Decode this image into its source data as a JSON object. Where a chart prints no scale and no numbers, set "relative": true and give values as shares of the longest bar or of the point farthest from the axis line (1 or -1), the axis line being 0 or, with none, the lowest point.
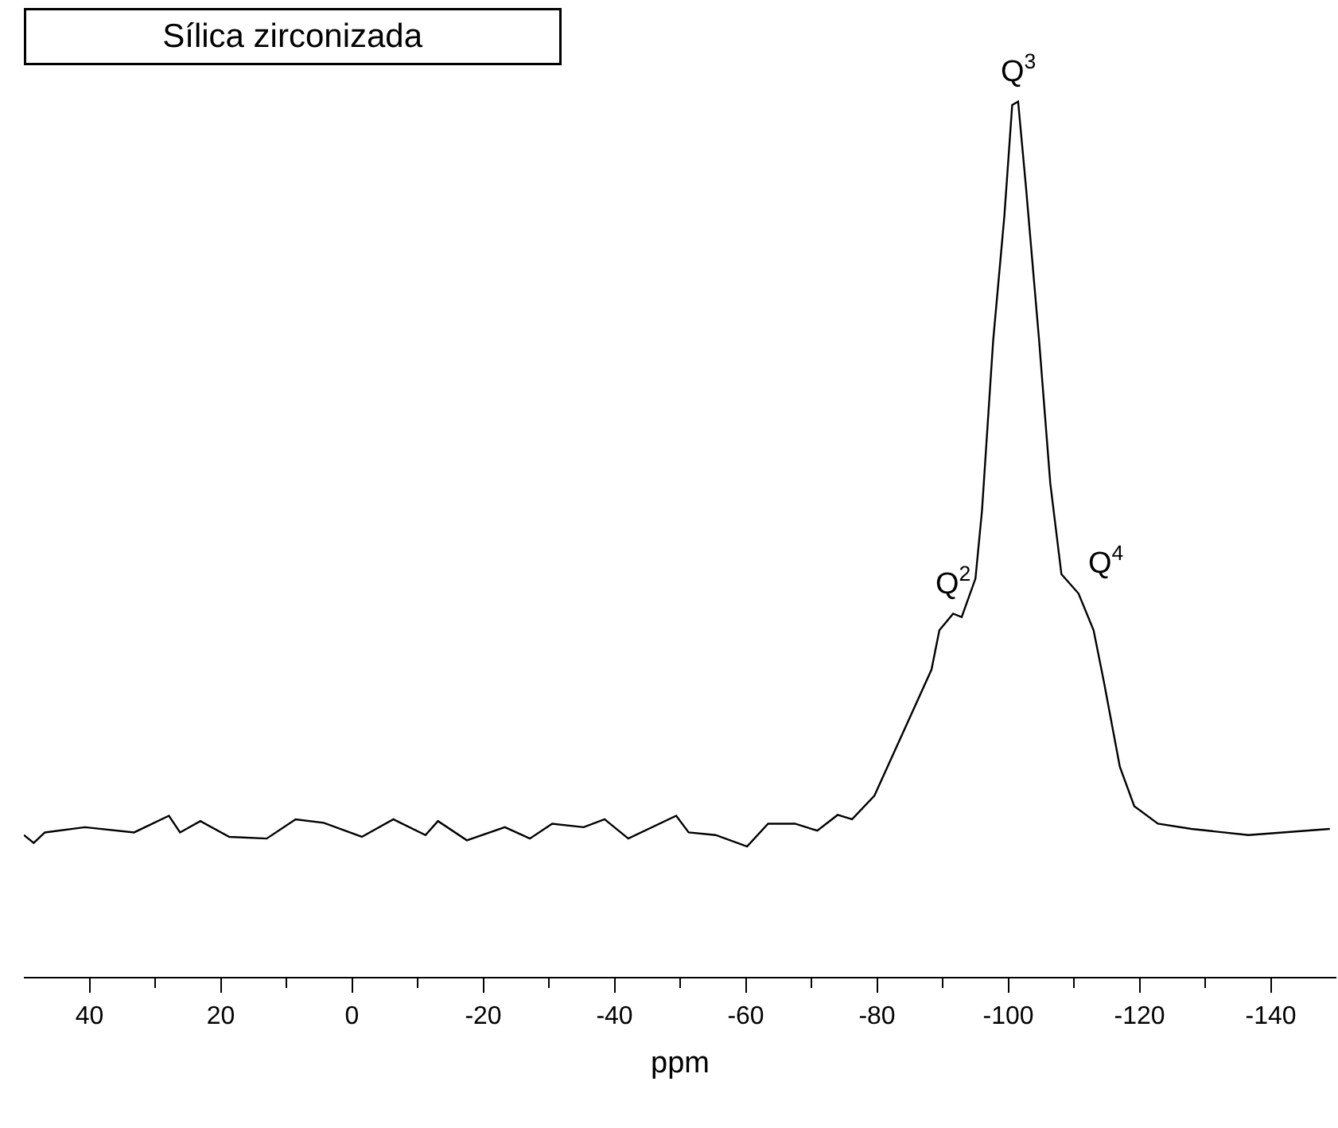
{
  "chart_data": {
    "type": "line",
    "relative": true,
    "title": "Sílica zirconizada",
    "xlabel": "ppm",
    "x": [
      50,
      48.5,
      46.8,
      40.7,
      33.2,
      27.9,
      26.2,
      23.1,
      18.7,
      13.0,
      8.6,
      4.3,
      -1.5,
      -6.3,
      -11.2,
      -13.1,
      -17.5,
      -23.3,
      -27.1,
      -30.5,
      -35.3,
      -38.5,
      -42.1,
      -49.4,
      -51.3,
      -55.4,
      -60.2,
      -63.4,
      -67.5,
      -70.9,
      -74.0,
      -76.2,
      -79.6,
      -83.9,
      -88.3,
      -89.5,
      -91.6,
      -92.9,
      -95.0,
      -96.0,
      -97.7,
      -99.4,
      -100.6,
      -101.5,
      -102.7,
      -104.7,
      -106.4,
      -108.1,
      -110.7,
      -113.0,
      -114.6,
      -117.0,
      -119.2,
      -122.8,
      -127.9,
      -136.6,
      -149
    ],
    "series": [
      {
        "color": "#000000",
        "values": [
          0.162,
          0.153,
          0.165,
          0.171,
          0.165,
          0.184,
          0.165,
          0.178,
          0.16,
          0.158,
          0.18,
          0.176,
          0.16,
          0.18,
          0.162,
          0.178,
          0.156,
          0.171,
          0.158,
          0.175,
          0.171,
          0.18,
          0.158,
          0.184,
          0.165,
          0.162,
          0.149,
          0.175,
          0.175,
          0.167,
          0.185,
          0.18,
          0.207,
          0.278,
          0.351,
          0.396,
          0.415,
          0.411,
          0.455,
          0.533,
          0.727,
          0.869,
          0.996,
          1.0,
          0.902,
          0.727,
          0.564,
          0.46,
          0.438,
          0.396,
          0.336,
          0.24,
          0.195,
          0.175,
          0.169,
          0.162,
          0.169
        ]
      }
    ],
    "xlim": [
      50,
      -150
    ],
    "xticks": [
      40,
      {
        "value": 30,
        "label": null
      },
      20,
      {
        "value": 10,
        "label": null
      },
      0,
      {
        "value": -10,
        "label": null
      },
      -20,
      {
        "value": -30,
        "label": null
      },
      -40,
      {
        "value": -50,
        "label": null
      },
      -60,
      {
        "value": -70,
        "label": null
      },
      -80,
      {
        "value": -90,
        "label": null
      },
      -100,
      {
        "value": -110,
        "label": null
      },
      -120,
      {
        "value": -130,
        "label": null
      },
      -140
    ],
    "annotations": [
      {
        "text": "Q$^{2}$",
        "x": -91.6,
        "y": 0.415
      },
      {
        "text": "Q$^{3}$",
        "x": -101.5,
        "y": 1.0
      },
      {
        "text": "Q$^{4}$",
        "x": -110.7,
        "y": 0.438
      }
    ],
    "marker": "none",
    "line_style": "solid"
  }
}
